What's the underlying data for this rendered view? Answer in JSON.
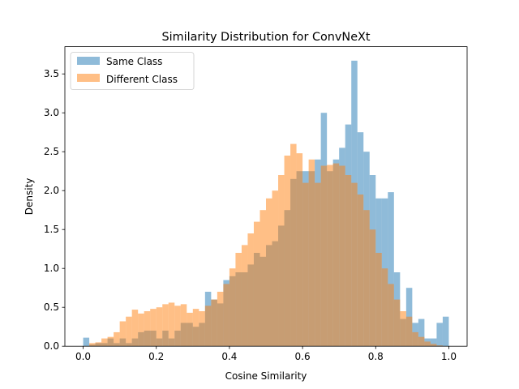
{
  "chart_data": {
    "type": "histogram",
    "title": "Similarity Distribution for ConvNeXt",
    "xlabel": "Cosine Similarity",
    "ylabel": "Density",
    "xlim": [
      -0.05,
      1.05
    ],
    "ylim": [
      0,
      3.85
    ],
    "xticks": [
      "0.0",
      "0.2",
      "0.4",
      "0.6",
      "0.8",
      "1.0"
    ],
    "xtick_values": [
      0.0,
      0.2,
      0.4,
      0.6,
      0.8,
      1.0
    ],
    "yticks": [
      "0.0",
      "0.5",
      "1.0",
      "1.5",
      "2.0",
      "2.5",
      "3.0",
      "3.5"
    ],
    "ytick_values": [
      0.0,
      0.5,
      1.0,
      1.5,
      2.0,
      2.5,
      3.0,
      3.5
    ],
    "legend_position": "top-left",
    "grid": false,
    "series": [
      {
        "name": "Same Class",
        "color": "#1f77b4",
        "alpha": 0.5,
        "bin_start": 0.0,
        "bin_end": 1.0,
        "values": [
          0.11,
          0.02,
          0.04,
          0.04,
          0.1,
          0.04,
          0.1,
          0.04,
          0.1,
          0.18,
          0.2,
          0.2,
          0.1,
          0.2,
          0.1,
          0.2,
          0.3,
          0.3,
          0.25,
          0.3,
          0.7,
          0.6,
          0.55,
          0.85,
          0.9,
          0.95,
          0.95,
          1.05,
          1.2,
          1.15,
          1.3,
          1.35,
          1.55,
          1.75,
          2.15,
          2.25,
          2.25,
          2.25,
          2.4,
          3.0,
          2.25,
          2.4,
          2.55,
          2.85,
          3.67,
          2.75,
          2.5,
          2.2,
          1.9,
          1.9,
          1.98,
          0.95,
          0.35,
          0.75,
          0.3,
          0.35,
          0.1,
          0.1,
          0.3,
          0.38
        ]
      },
      {
        "name": "Different Class",
        "color": "#ff7f0e",
        "alpha": 0.5,
        "bin_start": 0.0,
        "bin_end": 1.0,
        "values": [
          0.0,
          0.04,
          0.05,
          0.1,
          0.12,
          0.18,
          0.32,
          0.38,
          0.47,
          0.42,
          0.45,
          0.48,
          0.5,
          0.54,
          0.56,
          0.52,
          0.54,
          0.43,
          0.48,
          0.45,
          0.52,
          0.6,
          0.7,
          0.8,
          1.0,
          1.2,
          1.3,
          1.45,
          1.6,
          1.75,
          1.9,
          2.0,
          2.2,
          2.45,
          2.6,
          2.48,
          2.1,
          2.4,
          2.1,
          2.32,
          2.33,
          2.35,
          2.32,
          2.2,
          2.1,
          1.95,
          1.75,
          1.5,
          1.2,
          1.0,
          0.8,
          0.6,
          0.45,
          0.38,
          0.18,
          0.12,
          0.06,
          0.03,
          0.01,
          0.0
        ]
      }
    ]
  }
}
